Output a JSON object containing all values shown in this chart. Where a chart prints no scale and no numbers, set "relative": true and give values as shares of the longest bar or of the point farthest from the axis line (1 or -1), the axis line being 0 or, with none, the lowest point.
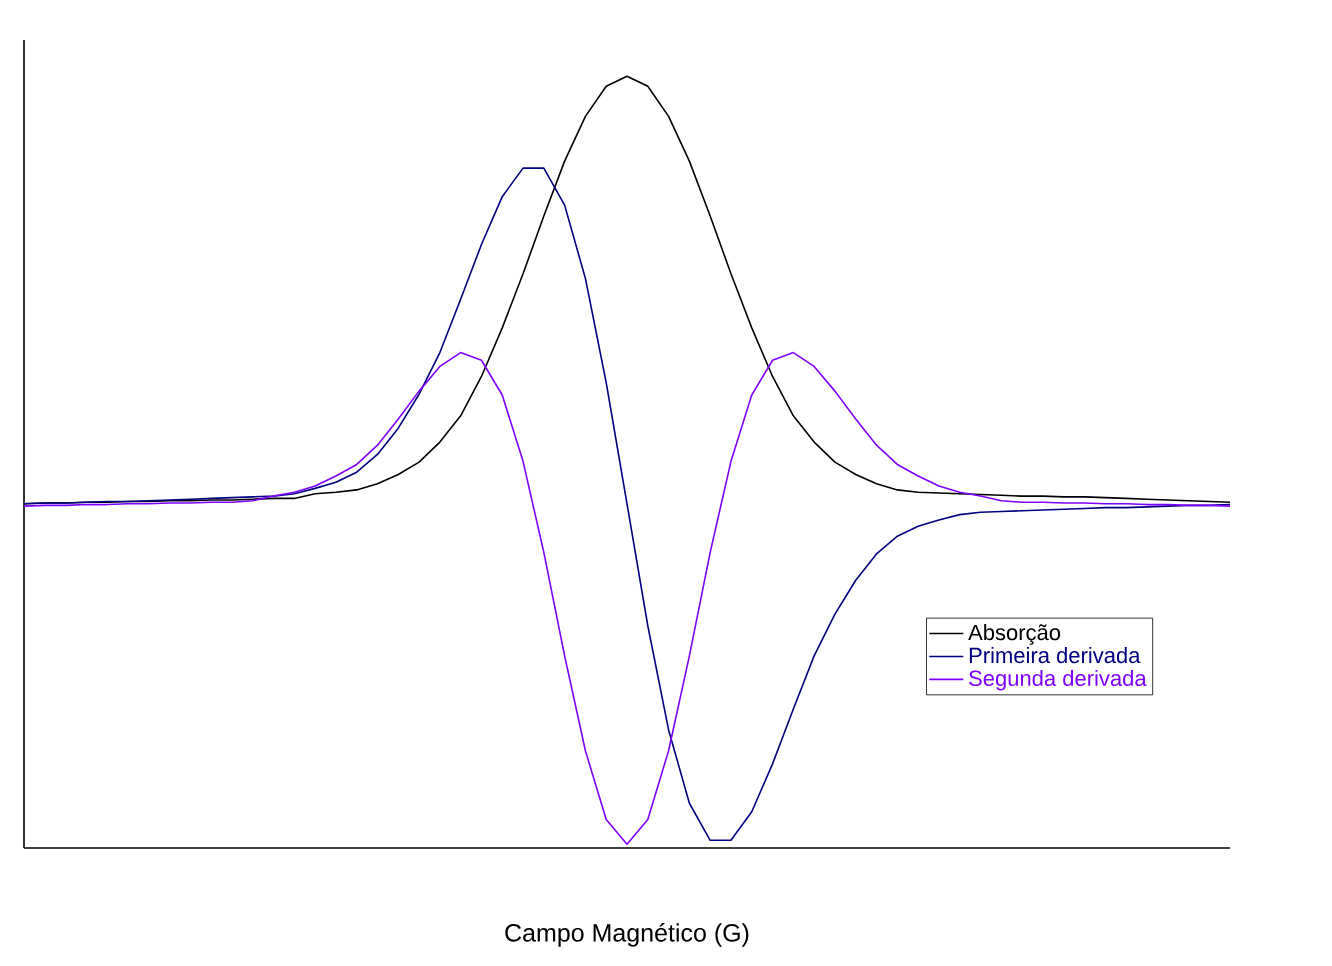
{
  "chart_data": {
    "type": "line",
    "relative": true,
    "xlabel": "Campo Magnético (G)",
    "tick_labels": false,
    "legend": "bottom right",
    "categories": [
      null,
      null,
      null,
      null,
      null,
      null,
      null,
      null,
      null,
      null,
      null,
      null,
      null,
      null,
      null,
      null,
      null,
      null,
      null,
      null,
      null,
      null,
      null,
      null,
      null,
      null,
      null,
      null,
      null,
      null,
      null,
      null,
      null,
      null,
      null,
      null,
      null,
      null,
      null,
      null,
      null,
      null,
      null,
      null,
      null,
      null,
      null,
      null,
      null,
      null,
      null,
      null,
      null,
      null,
      null,
      null,
      null,
      null,
      null
    ],
    "series": [
      {
        "name": "Absorção",
        "color": "#000000",
        "values": [
          0.446,
          0.447,
          0.447,
          0.448,
          0.448,
          0.449,
          0.449,
          0.45,
          0.45,
          0.451,
          0.451,
          0.452,
          0.453,
          0.453,
          0.459,
          0.461,
          0.464,
          0.472,
          0.484,
          0.5,
          0.526,
          0.56,
          0.611,
          0.674,
          0.744,
          0.819,
          0.89,
          0.948,
          0.987,
          1,
          0.987,
          0.948,
          0.89,
          0.819,
          0.744,
          0.674,
          0.611,
          0.56,
          0.526,
          0.5,
          0.484,
          0.472,
          0.464,
          0.461,
          0.46,
          0.459,
          0.458,
          0.457,
          0.456,
          0.456,
          0.455,
          0.455,
          0.454,
          0.453,
          0.452,
          0.451,
          0.45,
          0.449,
          0.448
        ]
      },
      {
        "name": "Primeira derivada",
        "color": "#000080",
        "values": [
          0.446,
          0.447,
          0.447,
          0.448,
          0.449,
          0.449,
          0.45,
          0.451,
          0.452,
          0.453,
          0.454,
          0.455,
          0.456,
          0.459,
          0.466,
          0.474,
          0.487,
          0.51,
          0.544,
          0.588,
          0.642,
          0.711,
          0.782,
          0.844,
          0.881,
          0.881,
          0.833,
          0.738,
          0.603,
          0.446,
          0.288,
          0.153,
          0.058,
          0.01,
          0.01,
          0.047,
          0.109,
          0.18,
          0.249,
          0.303,
          0.347,
          0.381,
          0.404,
          0.417,
          0.425,
          0.432,
          0.435,
          0.436,
          0.437,
          0.438,
          0.439,
          0.44,
          0.441,
          0.441,
          0.442,
          0.443,
          0.444,
          0.444,
          0.445
        ]
      },
      {
        "name": "Segunda derivada",
        "color": "#8000ff",
        "values": [
          0.443,
          0.444,
          0.444,
          0.445,
          0.445,
          0.446,
          0.446,
          0.447,
          0.447,
          0.448,
          0.448,
          0.45,
          0.456,
          0.461,
          0.469,
          0.482,
          0.497,
          0.522,
          0.556,
          0.592,
          0.624,
          0.642,
          0.632,
          0.587,
          0.501,
          0.383,
          0.249,
          0.126,
          0.037,
          0.005,
          0.037,
          0.126,
          0.249,
          0.383,
          0.501,
          0.587,
          0.632,
          0.642,
          0.624,
          0.592,
          0.556,
          0.522,
          0.497,
          0.482,
          0.469,
          0.461,
          0.456,
          0.45,
          0.448,
          0.448,
          0.447,
          0.447,
          0.446,
          0.446,
          0.445,
          0.445,
          0.444,
          0.444,
          0.443
        ]
      }
    ]
  }
}
